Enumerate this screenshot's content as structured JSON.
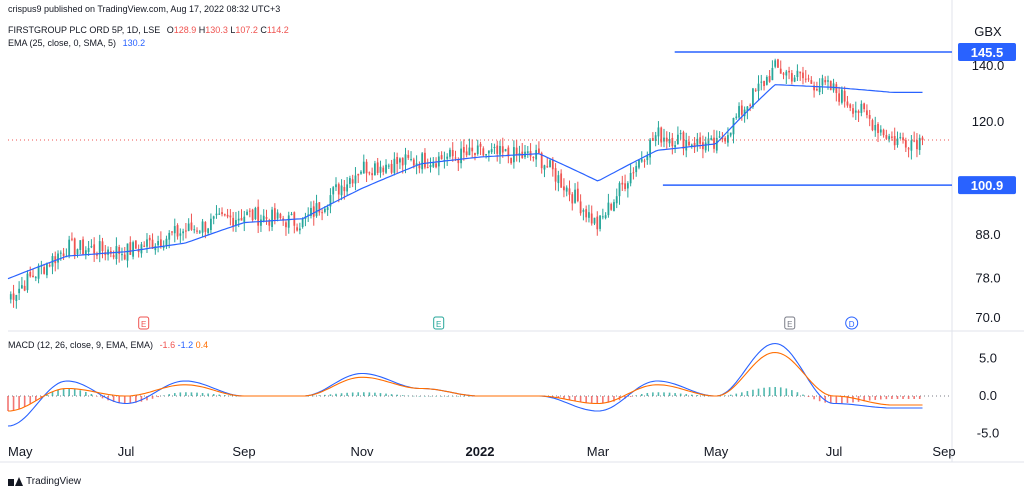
{
  "publisher": "crispus9 published on TradingView.com, Aug 17, 2022 08:32 UTC+3",
  "price_pane": {
    "symbol": "FIRSTGROUP PLC ORD 5P, 1D, LSE",
    "ohlc": [
      {
        "k": "O",
        "v": "128.9"
      },
      {
        "k": "H",
        "v": "130.3"
      },
      {
        "k": "L",
        "v": "107.2"
      },
      {
        "k": "C",
        "v": "114.2"
      }
    ],
    "ema_label": "EMA (25, close, 0, SMA, 5)",
    "ema_value": "130.2",
    "currency": "GBX",
    "axis_ticks": [
      "140.0",
      "120.0",
      "88.0",
      "78.0",
      "70.0"
    ],
    "resistance_label": "145.5",
    "support_label": "100.9",
    "event_markers": [
      "E",
      "E",
      "E",
      "D"
    ]
  },
  "macd_pane": {
    "label": "MACD (12, 26, close, 9, EMA, EMA)",
    "values": [
      "-1.6",
      "-1.2",
      "0.4"
    ],
    "axis_ticks": [
      "5.0",
      "0.0",
      "-5.0"
    ]
  },
  "x_axis": [
    "May",
    "Jul",
    "Sep",
    "Nov",
    "2022",
    "Mar",
    "May",
    "Jul",
    "Sep"
  ],
  "brand": "TradingView",
  "colors": {
    "up": "#26a69a",
    "down": "#ef5350",
    "ema": "#2962ff",
    "macd": "#2962ff",
    "signal": "#ff6d00",
    "level": "#2962ff",
    "hist_up": "#26a69a",
    "hist_down": "#ef5350"
  },
  "chart_data": [
    {
      "type": "line",
      "name": "price",
      "title": "FIRSTGROUP PLC ORD 5P, 1D, LSE",
      "y_scale": "log",
      "ylim": [
        68,
        150
      ],
      "x": [
        "2021-05",
        "2021-06",
        "2021-07",
        "2021-08",
        "2021-09",
        "2021-10",
        "2021-11",
        "2021-12",
        "2022-01",
        "2022-02",
        "2022-03",
        "2022-04",
        "2022-05",
        "2022-06",
        "2022-07",
        "2022-08"
      ],
      "series": [
        {
          "values": [
            74,
            85,
            84,
            89,
            93,
            91,
            106,
            108,
            110,
            109,
            90,
            116,
            112,
            139,
            131,
            114.2
          ]
        },
        {
          "name": "EMA (25, close, 0, SMA, 5)",
          "values": [
            78,
            83,
            84,
            86,
            91,
            92,
            100,
            107,
            109,
            110,
            102,
            111,
            113,
            133,
            132,
            130.2
          ]
        }
      ],
      "levels": [
        145.5,
        100.9
      ],
      "last_close": 114.2
    },
    {
      "type": "line",
      "name": "macd",
      "title": "MACD (12, 26, close, 9, EMA, EMA)",
      "ylim": [
        -6,
        8
      ],
      "x": [
        "2021-05",
        "2021-06",
        "2021-07",
        "2021-08",
        "2021-09",
        "2021-10",
        "2021-11",
        "2021-12",
        "2022-01",
        "2022-02",
        "2022-03",
        "2022-04",
        "2022-05",
        "2022-06",
        "2022-07",
        "2022-08"
      ],
      "series": [
        {
          "values": [
            -4,
            2,
            -1,
            2,
            0,
            0,
            3,
            1,
            0,
            0,
            -2,
            2,
            0,
            7,
            -1,
            -1.6
          ]
        },
        {
          "values": [
            -2,
            1,
            0,
            1.5,
            0,
            0,
            2.5,
            1,
            0,
            0,
            -1,
            1.5,
            0,
            5.8,
            0,
            -1.2
          ]
        }
      ],
      "histogram_last": 0.4
    }
  ]
}
